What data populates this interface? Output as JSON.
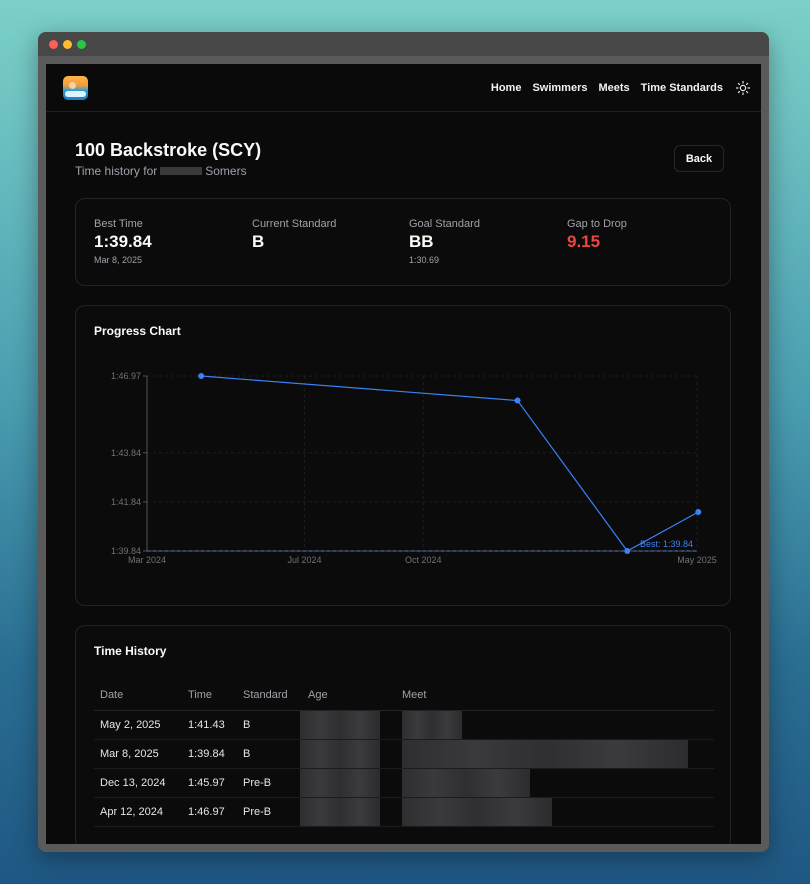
{
  "nav": {
    "links": [
      "Home",
      "Swimmers",
      "Meets",
      "Time Standards"
    ]
  },
  "header": {
    "title": "100 Backstroke (SCY)",
    "subtitle_prefix": "Time history for",
    "subtitle_suffix": "Somers",
    "back_label": "Back"
  },
  "stats": {
    "best_time": {
      "label": "Best Time",
      "value": "1:39.84",
      "sub": "Mar 8, 2025"
    },
    "current_standard": {
      "label": "Current Standard",
      "value": "B"
    },
    "goal_standard": {
      "label": "Goal Standard",
      "value": "BB",
      "sub": "1:30.69"
    },
    "gap": {
      "label": "Gap to Drop",
      "value": "9.15",
      "color": "#ef4444"
    }
  },
  "progress": {
    "title": "Progress Chart"
  },
  "chart_data": {
    "type": "line",
    "y_ticks": [
      "1:46.97",
      "1:43.84",
      "1:41.84",
      "1:39.84"
    ],
    "y_tick_values": [
      106.97,
      103.84,
      101.84,
      99.84
    ],
    "x_ticks": [
      "Mar 2024",
      "Jul 2024",
      "Oct 2024",
      "May 2025"
    ],
    "ylim": [
      99.84,
      106.97
    ],
    "points": [
      {
        "date": "2024-04-12",
        "value": 106.97
      },
      {
        "date": "2024-12-13",
        "value": 105.97
      },
      {
        "date": "2025-03-08",
        "value": 99.84
      },
      {
        "date": "2025-05-02",
        "value": 101.43
      }
    ],
    "reference_line": {
      "label": "Best: 1:39.84",
      "value": 99.84
    },
    "line_color": "#3b82f6",
    "grid": true
  },
  "history": {
    "title": "Time History",
    "columns": [
      "Date",
      "Time",
      "Standard",
      "Age",
      "Meet"
    ],
    "rows": [
      {
        "date": "May 2, 2025",
        "time": "1:41.43",
        "standard": "B"
      },
      {
        "date": "Mar 8, 2025",
        "time": "1:39.84",
        "standard": "B"
      },
      {
        "date": "Dec 13, 2024",
        "time": "1:45.97",
        "standard": "Pre-B"
      },
      {
        "date": "Apr 12, 2024",
        "time": "1:46.97",
        "standard": "Pre-B"
      }
    ]
  }
}
